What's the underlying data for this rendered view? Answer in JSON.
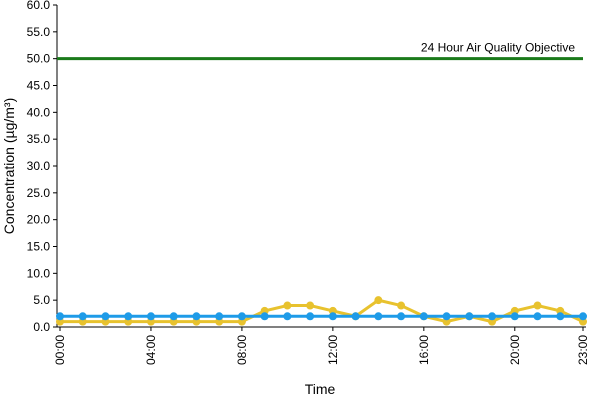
{
  "chart_data": {
    "type": "line",
    "y_label": "Concentration (µg/m³)",
    "x_label": "Time",
    "categories": [
      "00:00",
      null,
      null,
      null,
      "04:00",
      null,
      null,
      null,
      "08:00",
      null,
      null,
      null,
      "12:00",
      null,
      null,
      null,
      "16:00",
      null,
      null,
      null,
      "20:00",
      null,
      null,
      "23:00"
    ],
    "series": [
      {
        "color": "#e8c22e",
        "values": [
          1,
          1,
          1,
          1,
          1,
          1,
          1,
          1,
          1,
          3,
          4,
          4,
          3,
          2,
          5,
          4,
          2,
          1,
          2,
          1,
          3,
          4,
          3,
          1
        ]
      },
      {
        "color": "#1e9be8",
        "values": [
          2,
          2,
          2,
          2,
          2,
          2,
          2,
          2,
          2,
          2,
          2,
          2,
          2,
          2,
          2,
          2,
          2,
          2,
          2,
          2,
          2,
          2,
          2,
          2
        ]
      }
    ],
    "reference_line": {
      "value": 50,
      "label": "24 Hour Air Quality Objective",
      "color": "#1a7a1a"
    },
    "ylim": [
      0,
      60
    ],
    "yticks": [
      {
        "value": 0,
        "label": "0.0"
      },
      {
        "value": 5,
        "label": "5.0"
      },
      {
        "value": 10,
        "label": "10.0"
      },
      {
        "value": 15,
        "label": "15.0"
      },
      {
        "value": 20,
        "label": "20.0"
      },
      {
        "value": 25,
        "label": "25.0"
      },
      {
        "value": 30,
        "label": "30.0"
      },
      {
        "value": 35,
        "label": "35.0"
      },
      {
        "value": 40,
        "label": "40.0"
      },
      {
        "value": 45,
        "label": "45.0"
      },
      {
        "value": 50,
        "label": "50.0"
      },
      {
        "value": 55,
        "label": "55.0"
      },
      {
        "value": 60,
        "label": "60.0"
      }
    ]
  }
}
